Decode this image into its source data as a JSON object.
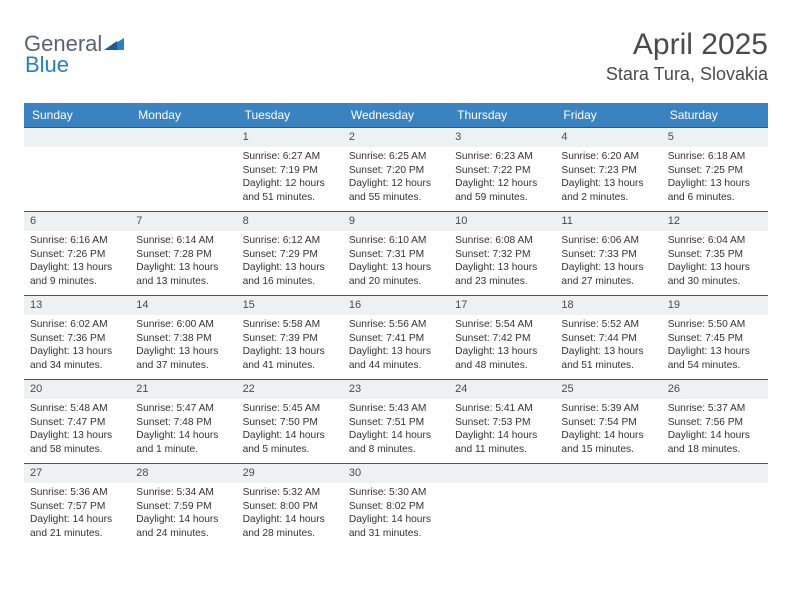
{
  "logo": {
    "text1": "General",
    "text2": "Blue"
  },
  "title": {
    "month": "April 2025",
    "location": "Stara Tura, Slovakia"
  },
  "colors": {
    "header_bg": "#3b83c0",
    "header_text": "#ffffff",
    "daynum_bg": "#eef1f4",
    "border": "#3b5670",
    "body_text": "#333333",
    "logo_gray": "#5a6470",
    "logo_blue": "#2b7fbf"
  },
  "weekdays": [
    "Sunday",
    "Monday",
    "Tuesday",
    "Wednesday",
    "Thursday",
    "Friday",
    "Saturday"
  ],
  "grid": {
    "leading_blanks": 2,
    "days": [
      {
        "n": "1",
        "sunrise": "6:27 AM",
        "sunset": "7:19 PM",
        "daylight": "12 hours and 51 minutes."
      },
      {
        "n": "2",
        "sunrise": "6:25 AM",
        "sunset": "7:20 PM",
        "daylight": "12 hours and 55 minutes."
      },
      {
        "n": "3",
        "sunrise": "6:23 AM",
        "sunset": "7:22 PM",
        "daylight": "12 hours and 59 minutes."
      },
      {
        "n": "4",
        "sunrise": "6:20 AM",
        "sunset": "7:23 PM",
        "daylight": "13 hours and 2 minutes."
      },
      {
        "n": "5",
        "sunrise": "6:18 AM",
        "sunset": "7:25 PM",
        "daylight": "13 hours and 6 minutes."
      },
      {
        "n": "6",
        "sunrise": "6:16 AM",
        "sunset": "7:26 PM",
        "daylight": "13 hours and 9 minutes."
      },
      {
        "n": "7",
        "sunrise": "6:14 AM",
        "sunset": "7:28 PM",
        "daylight": "13 hours and 13 minutes."
      },
      {
        "n": "8",
        "sunrise": "6:12 AM",
        "sunset": "7:29 PM",
        "daylight": "13 hours and 16 minutes."
      },
      {
        "n": "9",
        "sunrise": "6:10 AM",
        "sunset": "7:31 PM",
        "daylight": "13 hours and 20 minutes."
      },
      {
        "n": "10",
        "sunrise": "6:08 AM",
        "sunset": "7:32 PM",
        "daylight": "13 hours and 23 minutes."
      },
      {
        "n": "11",
        "sunrise": "6:06 AM",
        "sunset": "7:33 PM",
        "daylight": "13 hours and 27 minutes."
      },
      {
        "n": "12",
        "sunrise": "6:04 AM",
        "sunset": "7:35 PM",
        "daylight": "13 hours and 30 minutes."
      },
      {
        "n": "13",
        "sunrise": "6:02 AM",
        "sunset": "7:36 PM",
        "daylight": "13 hours and 34 minutes."
      },
      {
        "n": "14",
        "sunrise": "6:00 AM",
        "sunset": "7:38 PM",
        "daylight": "13 hours and 37 minutes."
      },
      {
        "n": "15",
        "sunrise": "5:58 AM",
        "sunset": "7:39 PM",
        "daylight": "13 hours and 41 minutes."
      },
      {
        "n": "16",
        "sunrise": "5:56 AM",
        "sunset": "7:41 PM",
        "daylight": "13 hours and 44 minutes."
      },
      {
        "n": "17",
        "sunrise": "5:54 AM",
        "sunset": "7:42 PM",
        "daylight": "13 hours and 48 minutes."
      },
      {
        "n": "18",
        "sunrise": "5:52 AM",
        "sunset": "7:44 PM",
        "daylight": "13 hours and 51 minutes."
      },
      {
        "n": "19",
        "sunrise": "5:50 AM",
        "sunset": "7:45 PM",
        "daylight": "13 hours and 54 minutes."
      },
      {
        "n": "20",
        "sunrise": "5:48 AM",
        "sunset": "7:47 PM",
        "daylight": "13 hours and 58 minutes."
      },
      {
        "n": "21",
        "sunrise": "5:47 AM",
        "sunset": "7:48 PM",
        "daylight": "14 hours and 1 minute."
      },
      {
        "n": "22",
        "sunrise": "5:45 AM",
        "sunset": "7:50 PM",
        "daylight": "14 hours and 5 minutes."
      },
      {
        "n": "23",
        "sunrise": "5:43 AM",
        "sunset": "7:51 PM",
        "daylight": "14 hours and 8 minutes."
      },
      {
        "n": "24",
        "sunrise": "5:41 AM",
        "sunset": "7:53 PM",
        "daylight": "14 hours and 11 minutes."
      },
      {
        "n": "25",
        "sunrise": "5:39 AM",
        "sunset": "7:54 PM",
        "daylight": "14 hours and 15 minutes."
      },
      {
        "n": "26",
        "sunrise": "5:37 AM",
        "sunset": "7:56 PM",
        "daylight": "14 hours and 18 minutes."
      },
      {
        "n": "27",
        "sunrise": "5:36 AM",
        "sunset": "7:57 PM",
        "daylight": "14 hours and 21 minutes."
      },
      {
        "n": "28",
        "sunrise": "5:34 AM",
        "sunset": "7:59 PM",
        "daylight": "14 hours and 24 minutes."
      },
      {
        "n": "29",
        "sunrise": "5:32 AM",
        "sunset": "8:00 PM",
        "daylight": "14 hours and 28 minutes."
      },
      {
        "n": "30",
        "sunrise": "5:30 AM",
        "sunset": "8:02 PM",
        "daylight": "14 hours and 31 minutes."
      }
    ],
    "trailing_blanks": 3
  },
  "labels": {
    "sunrise": "Sunrise: ",
    "sunset": "Sunset: ",
    "daylight": "Daylight: "
  }
}
